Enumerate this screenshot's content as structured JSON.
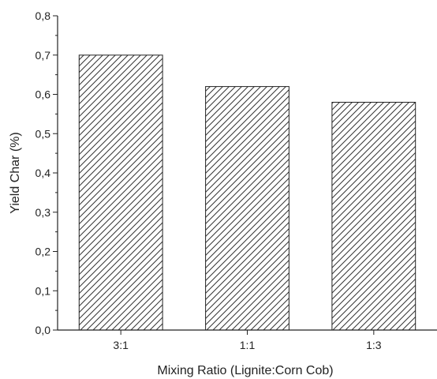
{
  "chart_data": {
    "type": "bar",
    "title": "",
    "xlabel": "Mixing Ratio (Lignite:Corn Cob)",
    "ylabel": "Yield Char (%)",
    "categories": [
      "3:1",
      "1:1",
      "1:3"
    ],
    "values": [
      0.7,
      0.62,
      0.58
    ],
    "ylim": [
      0.0,
      0.8
    ],
    "yticks": [
      "0,0",
      "0,1",
      "0,2",
      "0,3",
      "0,4",
      "0,5",
      "0,6",
      "0,7",
      "0,8"
    ],
    "grid": false,
    "bar_fill": "hatched",
    "colors": {
      "bar_edge": "#222222",
      "hatch": "#333333",
      "axis": "#222222"
    }
  }
}
